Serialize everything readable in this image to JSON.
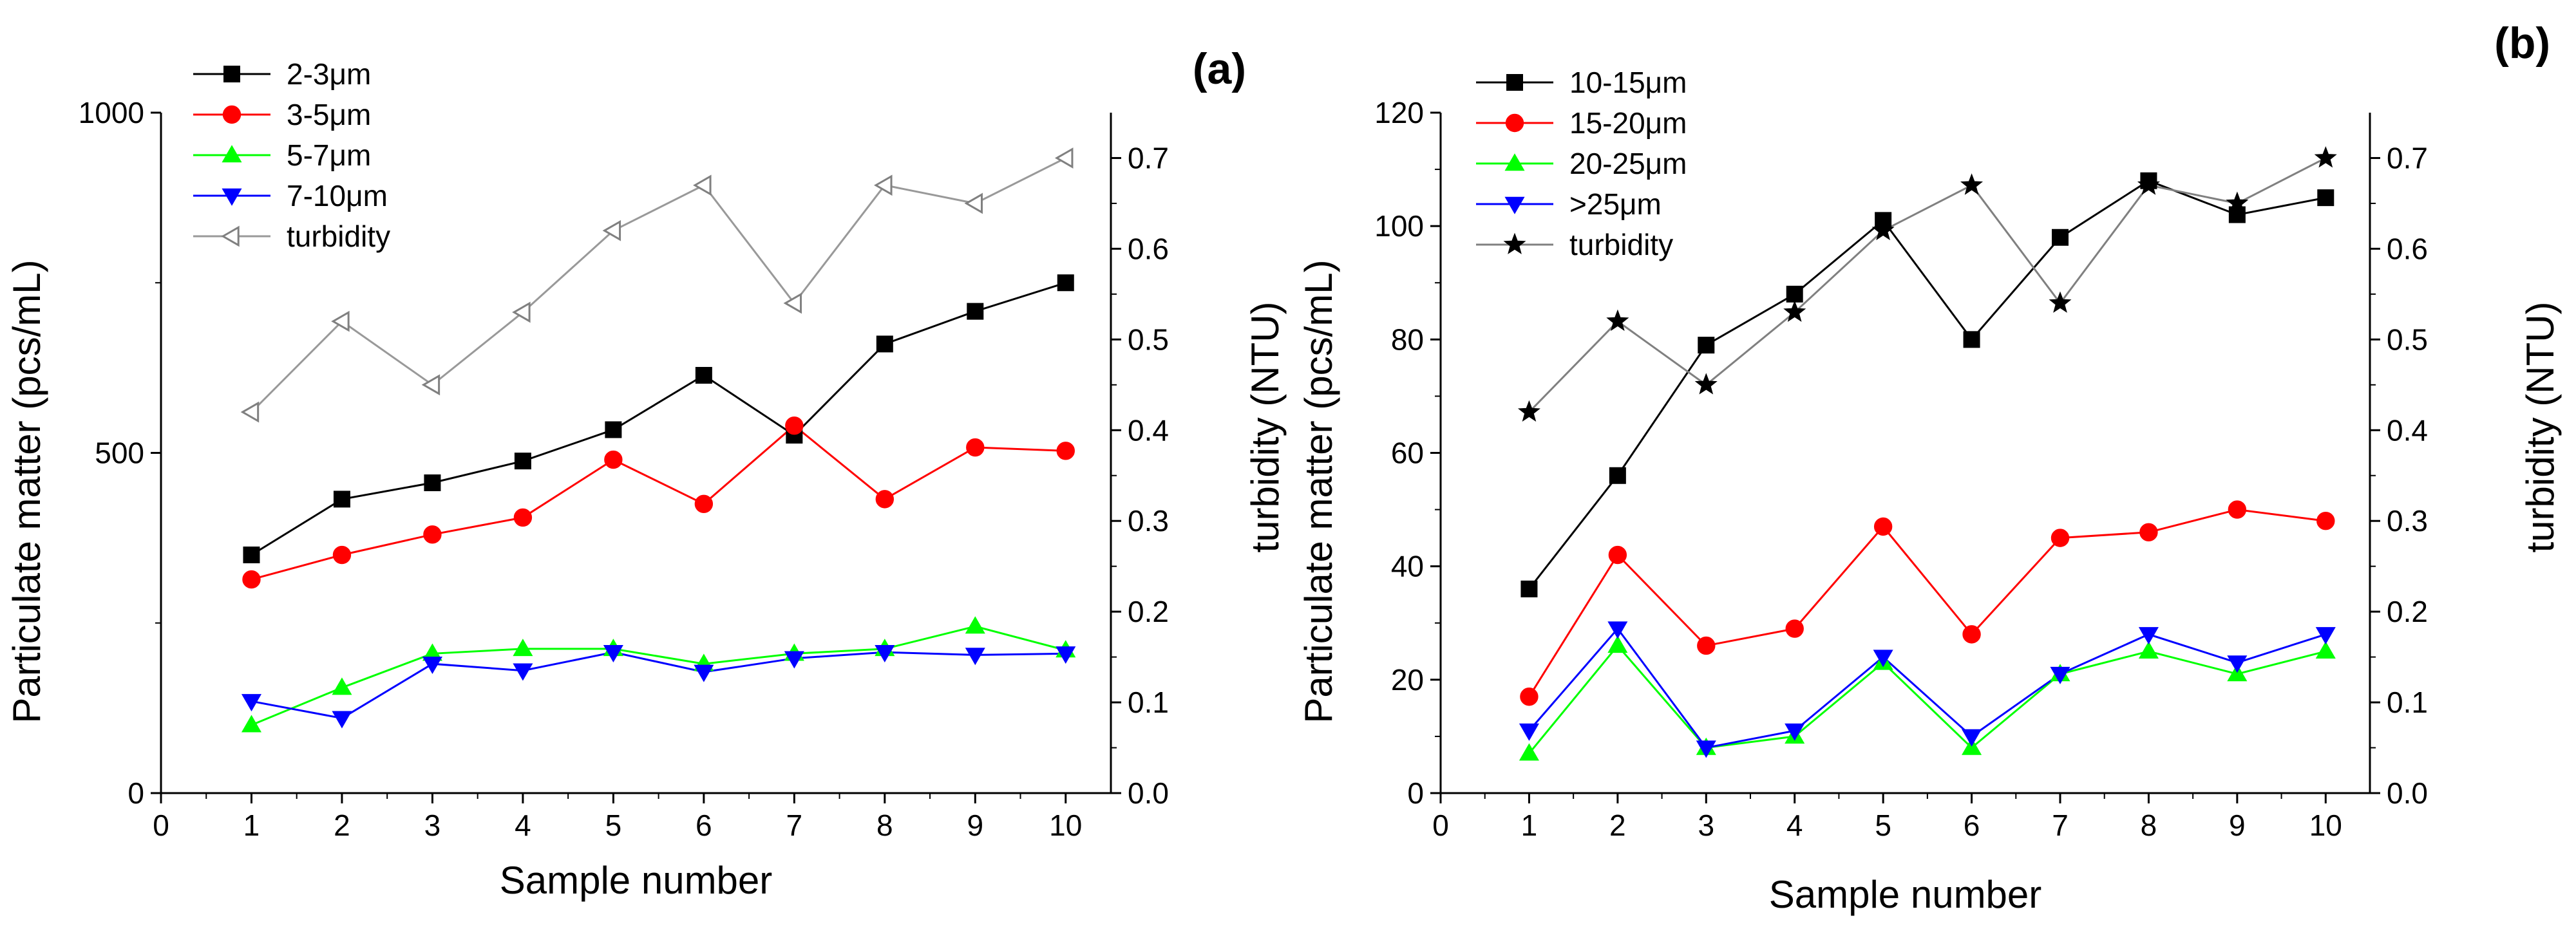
{
  "chart_data": [
    {
      "type": "line",
      "panel_label": "(a)",
      "xlabel": "Sample number",
      "ylabel": "Particulate matter (pcs/mL)",
      "y2label": "turbidity (NTU)",
      "xlim": [
        0,
        10.5
      ],
      "ylim": [
        0,
        1000
      ],
      "y2lim": [
        0,
        0.75
      ],
      "x_ticks": [
        0,
        1,
        2,
        3,
        4,
        5,
        6,
        7,
        8,
        9,
        10
      ],
      "y_ticks": [
        0,
        500,
        1000
      ],
      "y_tick_labels": [
        "0",
        "500",
        "1000"
      ],
      "y2_ticks": [
        0,
        0.1,
        0.2,
        0.3,
        0.4,
        0.5,
        0.6,
        0.7
      ],
      "y2_tick_labels": [
        "0.0",
        "0.1",
        "0.2",
        "0.3",
        "0.4",
        "0.5",
        "0.6",
        "0.7"
      ],
      "legend_position": "top-left",
      "x": [
        1,
        2,
        3,
        4,
        5,
        6,
        7,
        8,
        9,
        10
      ],
      "series": [
        {
          "name": "2-3μm",
          "axis": "left",
          "marker": "square",
          "fill": "#000000",
          "stroke": "#000000",
          "line": "#000000",
          "values": [
            350,
            432,
            456,
            488,
            534,
            614,
            526,
            660,
            708,
            750
          ]
        },
        {
          "name": "3-5μm",
          "axis": "left",
          "marker": "circle",
          "fill": "#ff0000",
          "stroke": "#ff0000",
          "line": "#ff0000",
          "values": [
            314,
            350,
            380,
            405,
            490,
            425,
            540,
            432,
            508,
            503
          ]
        },
        {
          "name": "5-7μm",
          "axis": "left",
          "marker": "triangle-up",
          "fill": "#00ff00",
          "stroke": "#00ff00",
          "line": "#00ff00",
          "values": [
            100,
            155,
            205,
            212,
            212,
            190,
            205,
            212,
            245,
            210
          ]
        },
        {
          "name": "7-10μm",
          "axis": "left",
          "marker": "triangle-down",
          "fill": "#0000ff",
          "stroke": "#0000ff",
          "line": "#0000ff",
          "values": [
            135,
            110,
            190,
            180,
            207,
            178,
            198,
            207,
            203,
            205
          ]
        },
        {
          "name": "turbidity",
          "axis": "right",
          "marker": "triangle-left-open",
          "fill": "#ffffff",
          "stroke": "#808080",
          "line": "#999999",
          "values": [
            0.42,
            0.52,
            0.45,
            0.53,
            0.62,
            0.67,
            0.54,
            0.67,
            0.65,
            0.7
          ]
        }
      ]
    },
    {
      "type": "line",
      "panel_label": "(b)",
      "xlabel": "Sample number",
      "ylabel": "Particulate matter (pcs/mL)",
      "y2label": "turbidity (NTU)",
      "xlim": [
        0,
        10.5
      ],
      "ylim": [
        0,
        120
      ],
      "y2lim": [
        0,
        0.75
      ],
      "x_ticks": [
        0,
        1,
        2,
        3,
        4,
        5,
        6,
        7,
        8,
        9,
        10
      ],
      "y_ticks": [
        0,
        20,
        40,
        60,
        80,
        100,
        120
      ],
      "y_tick_labels": [
        "0",
        "20",
        "40",
        "60",
        "80",
        "100",
        "120"
      ],
      "y2_ticks": [
        0,
        0.1,
        0.2,
        0.3,
        0.4,
        0.5,
        0.6,
        0.7
      ],
      "y2_tick_labels": [
        "0.0",
        "0.1",
        "0.2",
        "0.3",
        "0.4",
        "0.5",
        "0.6",
        "0.7"
      ],
      "legend_position": "top-left",
      "x": [
        1,
        2,
        3,
        4,
        5,
        6,
        7,
        8,
        9,
        10
      ],
      "series": [
        {
          "name": "10-15μm",
          "axis": "left",
          "marker": "square",
          "fill": "#000000",
          "stroke": "#000000",
          "line": "#000000",
          "values": [
            36,
            56,
            79,
            88,
            101,
            80,
            98,
            108,
            102,
            105
          ]
        },
        {
          "name": "15-20μm",
          "axis": "left",
          "marker": "circle",
          "fill": "#ff0000",
          "stroke": "#ff0000",
          "line": "#ff0000",
          "values": [
            17,
            42,
            26,
            29,
            47,
            28,
            45,
            46,
            50,
            48
          ]
        },
        {
          "name": "20-25μm",
          "axis": "left",
          "marker": "triangle-up",
          "fill": "#00ff00",
          "stroke": "#00ff00",
          "line": "#00ff00",
          "values": [
            7,
            26,
            8,
            10,
            23,
            8,
            21,
            25,
            21,
            25
          ]
        },
        {
          "name": ">25μm",
          "axis": "left",
          "marker": "triangle-down",
          "fill": "#0000ff",
          "stroke": "#0000ff",
          "line": "#0000ff",
          "values": [
            11,
            29,
            8,
            11,
            24,
            10,
            21,
            28,
            23,
            28
          ]
        },
        {
          "name": "turbidity",
          "axis": "right",
          "marker": "star",
          "fill": "#000000",
          "stroke": "#000000",
          "line": "#808080",
          "values": [
            0.42,
            0.52,
            0.45,
            0.53,
            0.62,
            0.67,
            0.54,
            0.67,
            0.65,
            0.7
          ]
        }
      ]
    }
  ]
}
